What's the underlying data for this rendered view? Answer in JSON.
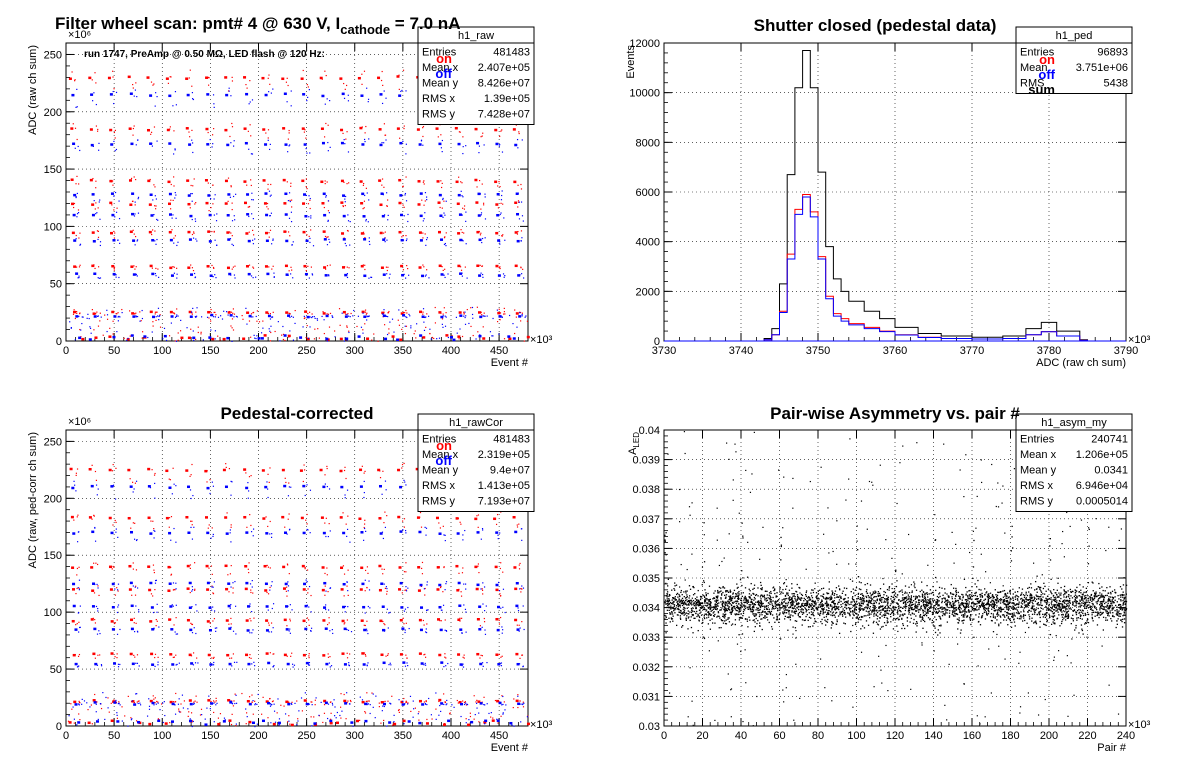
{
  "chart_data": [
    {
      "id": "p1",
      "type": "scatter",
      "title": "Filter wheel scan: pmt#   4 @   630 V, I",
      "title_sub": "cathode",
      "title_tail": " = 7.0 nA",
      "subtitle": "run 1747, PreAmp @ 0.50 MΩ, LED flash @  120 Hz:",
      "xlabel": "Event #",
      "ylabel": "ADC (raw ch sum)",
      "xlim": [
        0,
        480
      ],
      "ylim": [
        0,
        260
      ],
      "x_multiplier": "×10³",
      "y_multiplier": "×10⁶",
      "xticks": [
        "0",
        "50",
        "100",
        "150",
        "200",
        "250",
        "300",
        "350",
        "400",
        "450"
      ],
      "xtick_values": [
        0,
        50,
        100,
        150,
        200,
        250,
        300,
        350,
        400,
        450
      ],
      "yticks": [
        "0",
        "50",
        "100",
        "150",
        "200",
        "250"
      ],
      "ytick_values": [
        0,
        50,
        100,
        150,
        200,
        250
      ],
      "grid": true,
      "legend": [
        {
          "label": "on",
          "color": "#ff0000"
        },
        {
          "label": "off",
          "color": "#0000ff"
        }
      ],
      "stats_title": "h1_raw",
      "stats": [
        {
          "label": "Entries",
          "value": "481483"
        },
        {
          "label": "Mean x",
          "value": "2.407e+05"
        },
        {
          "label": "Mean y",
          "value": "8.426e+07"
        },
        {
          "label": "RMS x",
          "value": "1.39e+05"
        },
        {
          "label": "RMS y",
          "value": "7.428e+07"
        }
      ],
      "series": [
        {
          "name": "on",
          "color": "#ff0000",
          "levels": [
            230,
            185,
            140,
            120,
            95,
            65,
            25
          ]
        },
        {
          "name": "off",
          "color": "#0000ff",
          "levels": [
            215,
            172,
            128,
            110,
            88,
            58,
            22
          ]
        }
      ],
      "step_cycle": 20
    },
    {
      "id": "p2",
      "type": "line",
      "title": "Shutter closed (pedestal data)",
      "xlabel": "ADC (raw ch sum)",
      "ylabel": "Events",
      "xlim": [
        3730,
        3790
      ],
      "ylim": [
        0,
        12000
      ],
      "x_multiplier": "×10³",
      "xticks": [
        "3730",
        "3740",
        "3750",
        "3760",
        "3770",
        "3780",
        "3790"
      ],
      "xtick_values": [
        3730,
        3740,
        3750,
        3760,
        3770,
        3780,
        3790
      ],
      "yticks": [
        "0",
        "2000",
        "4000",
        "6000",
        "8000",
        "10000",
        "12000"
      ],
      "ytick_values": [
        0,
        2000,
        4000,
        6000,
        8000,
        10000,
        12000
      ],
      "grid": true,
      "legend": [
        {
          "label": "on",
          "color": "#ff0000"
        },
        {
          "label": "off",
          "color": "#0000ff"
        },
        {
          "label": "sum",
          "color": "#000000"
        }
      ],
      "stats_title": "h1_ped",
      "stats": [
        {
          "label": "Entries",
          "value": "96893"
        },
        {
          "label": "Mean",
          "value": "3.751e+06"
        },
        {
          "label": "RMS",
          "value": "5438"
        }
      ],
      "x": [
        3743,
        3744,
        3745,
        3746,
        3747,
        3748,
        3749,
        3750,
        3751,
        3752,
        3753,
        3754,
        3756,
        3758,
        3760,
        3763,
        3766,
        3770,
        3774,
        3777,
        3779,
        3781,
        3784
      ],
      "series": [
        {
          "name": "sum",
          "color": "#000000",
          "values": [
            100,
            500,
            2300,
            6700,
            10200,
            11700,
            10200,
            6800,
            3800,
            2500,
            2000,
            1600,
            1200,
            900,
            550,
            300,
            200,
            150,
            200,
            500,
            750,
            400,
            50
          ]
        },
        {
          "name": "on",
          "color": "#ff0000",
          "values": [
            50,
            250,
            1200,
            3500,
            5300,
            5900,
            5200,
            3400,
            1800,
            1100,
            900,
            700,
            550,
            400,
            250,
            150,
            100,
            80,
            100,
            250,
            380,
            200,
            25
          ]
        },
        {
          "name": "off",
          "color": "#0000ff",
          "values": [
            50,
            250,
            1150,
            3300,
            5100,
            5800,
            5000,
            3300,
            1700,
            1000,
            800,
            650,
            500,
            380,
            240,
            140,
            100,
            80,
            100,
            250,
            370,
            200,
            25
          ]
        }
      ]
    },
    {
      "id": "p3",
      "type": "scatter",
      "title": "Pedestal-corrected",
      "xlabel": "Event #",
      "ylabel": "ADC (raw, ped-corr ch sum)",
      "xlim": [
        0,
        480
      ],
      "ylim": [
        0,
        260
      ],
      "x_multiplier": "×10³",
      "y_multiplier": "×10⁶",
      "xticks": [
        "0",
        "50",
        "100",
        "150",
        "200",
        "250",
        "300",
        "350",
        "400",
        "450"
      ],
      "xtick_values": [
        0,
        50,
        100,
        150,
        200,
        250,
        300,
        350,
        400,
        450
      ],
      "yticks": [
        "0",
        "50",
        "100",
        "150",
        "200",
        "250"
      ],
      "ytick_values": [
        0,
        50,
        100,
        150,
        200,
        250
      ],
      "grid": true,
      "legend": [
        {
          "label": "on",
          "color": "#ff0000"
        },
        {
          "label": "off",
          "color": "#0000ff"
        }
      ],
      "stats_title": "h1_rawCor",
      "stats": [
        {
          "label": "Entries",
          "value": "481483"
        },
        {
          "label": "Mean x",
          "value": "2.319e+05"
        },
        {
          "label": "Mean y",
          "value": "9.4e+07"
        },
        {
          "label": "RMS x",
          "value": "1.413e+05"
        },
        {
          "label": "RMS y",
          "value": "7.193e+07"
        }
      ],
      "series": [
        {
          "name": "on",
          "color": "#ff0000",
          "levels": [
            225,
            183,
            140,
            120,
            93,
            63,
            22
          ]
        },
        {
          "name": "off",
          "color": "#0000ff",
          "levels": [
            210,
            170,
            125,
            105,
            85,
            55,
            20
          ]
        }
      ],
      "step_cycle": 20
    },
    {
      "id": "p4",
      "type": "scatter",
      "title": "Pair-wise Asymmetry vs. pair #",
      "xlabel": "Pair #",
      "ylabel": "A_LED",
      "ylabel_main": "A",
      "ylabel_sub": "LED",
      "xlim": [
        0,
        240
      ],
      "ylim": [
        0.03,
        0.04
      ],
      "x_multiplier": "×10³",
      "xticks": [
        "0",
        "20",
        "40",
        "60",
        "80",
        "100",
        "120",
        "140",
        "160",
        "180",
        "200",
        "220",
        "240"
      ],
      "xtick_values": [
        0,
        20,
        40,
        60,
        80,
        100,
        120,
        140,
        160,
        180,
        200,
        220,
        240
      ],
      "yticks": [
        "0.03",
        "0.031",
        "0.032",
        "0.033",
        "0.034",
        "0.035",
        "0.036",
        "0.037",
        "0.038",
        "0.039",
        "0.04"
      ],
      "ytick_values": [
        0.03,
        0.031,
        0.032,
        0.033,
        0.034,
        0.035,
        0.036,
        0.037,
        0.038,
        0.039,
        0.04
      ],
      "grid": true,
      "stats_title": "h1_asym_my",
      "stats": [
        {
          "label": "Entries",
          "value": "240741"
        },
        {
          "label": "Mean x",
          "value": "1.206e+05"
        },
        {
          "label": "Mean y",
          "value": "0.0341"
        },
        {
          "label": "RMS x",
          "value": "6.946e+04"
        },
        {
          "label": "RMS y",
          "value": "0.0005014"
        }
      ],
      "series": [
        {
          "name": "",
          "color": "#000000",
          "center": 0.0341,
          "spread": 0.0005014
        }
      ]
    }
  ]
}
